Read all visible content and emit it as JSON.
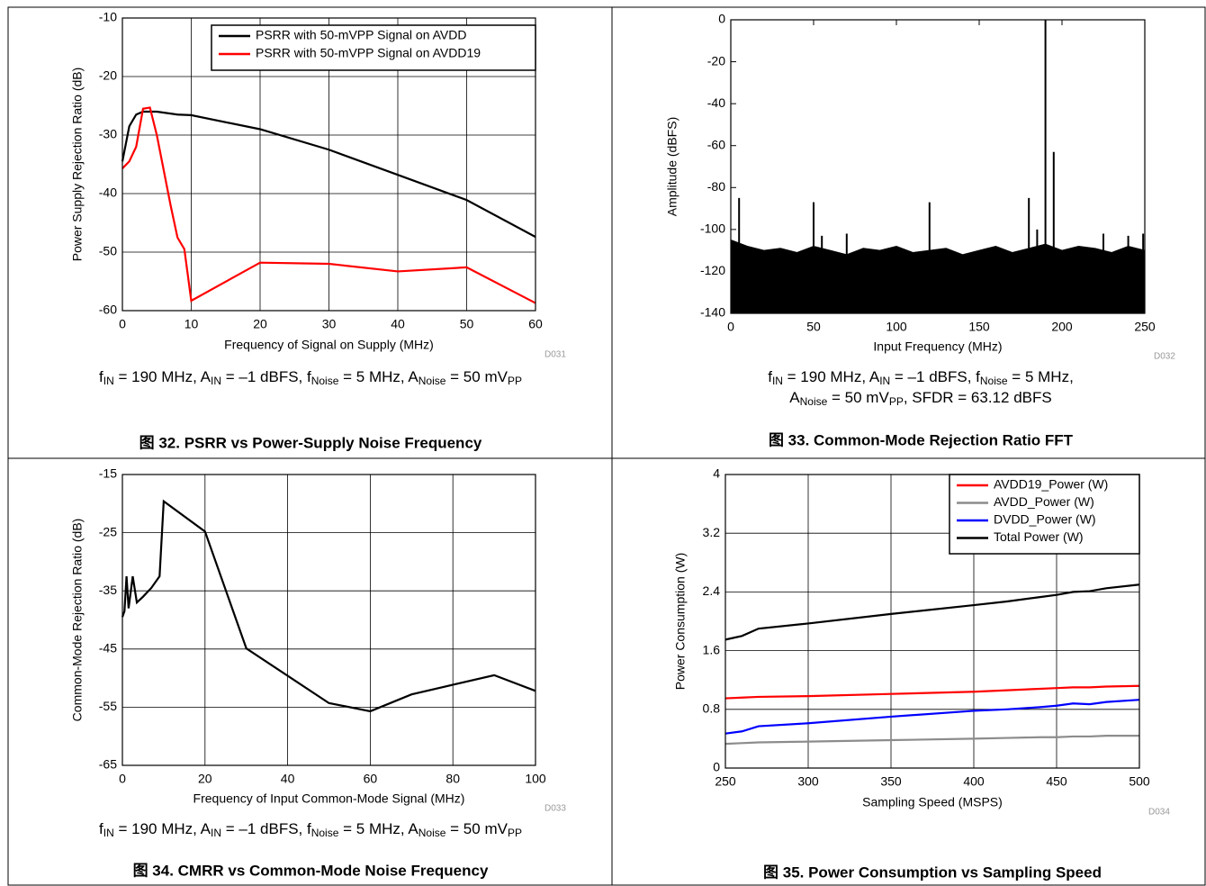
{
  "chart_data": [
    {
      "type": "line",
      "caption": "图 32. PSRR vs Power-Supply Noise Frequency",
      "xlabel": "Frequency of Signal on Supply (MHz)",
      "ylabel": "Power Supply Rejection Ratio (dB)",
      "note": "D031",
      "condition": [
        [
          "f",
          "IN",
          " = 190 MHz, A",
          "IN",
          " = –1 dBFS, f",
          "Noise",
          " = 5 MHz, A",
          "Noise",
          " = 50 mV",
          "PP"
        ]
      ],
      "xlim": [
        0,
        60
      ],
      "xticks": [
        0,
        10,
        20,
        30,
        40,
        50,
        60
      ],
      "ylim": [
        -60,
        -10
      ],
      "yticks": [
        -60,
        -50,
        -40,
        -30,
        -20,
        -10
      ],
      "grid": true,
      "legend": "upper right",
      "series": [
        {
          "name": "PSRR with 50-mVPP Signal on AVDD",
          "color": "#000000",
          "x": [
            0,
            1,
            2,
            3,
            5,
            8,
            10,
            20,
            30,
            40,
            50,
            60
          ],
          "values": [
            -34.5,
            -28.5,
            -26.5,
            -26,
            -26,
            -26.5,
            -26.6,
            -29,
            -32.5,
            -36.8,
            -41.1,
            -47.4
          ]
        },
        {
          "name": "PSRR with 50-mVPP Signal on AVDD19",
          "color": "#ff0000",
          "x": [
            0,
            1,
            2,
            3,
            4,
            5,
            6,
            7,
            8,
            9,
            10,
            20,
            30,
            40,
            50,
            60
          ],
          "values": [
            -35.7,
            -34.5,
            -32,
            -25.5,
            -25.3,
            -30,
            -36,
            -42,
            -47.5,
            -49.5,
            -58.3,
            -51.8,
            -52,
            -53.3,
            -52.6,
            -58.7
          ]
        }
      ]
    },
    {
      "type": "spectrum",
      "caption": "图 33. Common-Mode Rejection Ratio FFT",
      "xlabel": "Input Frequency (MHz)",
      "ylabel": "Amplitude (dBFS)",
      "note": "D032",
      "condition": [
        [
          "f",
          "IN",
          " = 190 MHz, A",
          "IN",
          " = –1 dBFS, f",
          "Noise",
          " = 5 MHz,"
        ],
        [
          "A",
          "Noise",
          " = 50 mV",
          "PP",
          ", SFDR = 63.12 dBFS"
        ]
      ],
      "xlim": [
        0,
        250
      ],
      "xticks": [
        0,
        50,
        100,
        150,
        200,
        250
      ],
      "ylim": [
        -140,
        0
      ],
      "yticks": [
        -140,
        -120,
        -100,
        -80,
        -60,
        -40,
        -20,
        0
      ],
      "grid": false,
      "color": "#000000",
      "noise_x": [
        0,
        10,
        20,
        30,
        40,
        50,
        60,
        70,
        80,
        90,
        100,
        110,
        120,
        130,
        140,
        150,
        160,
        170,
        180,
        190,
        200,
        210,
        220,
        230,
        240,
        250
      ],
      "noise_values": [
        -105,
        -108,
        -110,
        -109,
        -111,
        -108,
        -110,
        -112,
        -109,
        -110,
        -108,
        -111,
        -110,
        -109,
        -112,
        -110,
        -108,
        -111,
        -109,
        -107,
        -110,
        -108,
        -109,
        -111,
        -108,
        -110
      ],
      "x": [
        5,
        50,
        55,
        70,
        120,
        180,
        185,
        190,
        195,
        225,
        240,
        249
      ],
      "values": [
        -85,
        -87,
        -103,
        -102,
        -87,
        -85,
        -100,
        0,
        -63,
        -102,
        -103,
        -102
      ]
    },
    {
      "type": "line",
      "caption": "图 34. CMRR vs Common-Mode Noise Frequency",
      "xlabel": "Frequency of Input Common-Mode Signal (MHz)",
      "ylabel": "Common-Mode Rejection Ratio (dB)",
      "note": "D033",
      "condition": [
        [
          "f",
          "IN",
          " = 190 MHz, A",
          "IN",
          " = –1 dBFS, f",
          "Noise",
          " = 5 MHz, A",
          "Noise",
          " = 50 mV",
          "PP"
        ]
      ],
      "xlim": [
        0,
        100
      ],
      "xticks": [
        0,
        20,
        40,
        60,
        80,
        100
      ],
      "ylim": [
        -65,
        -15
      ],
      "yticks": [
        -65,
        -55,
        -45,
        -35,
        -25,
        -15
      ],
      "grid": true,
      "series": [
        {
          "color": "#000000",
          "x": [
            0,
            0.5,
            1,
            1.5,
            2.5,
            3.5,
            5,
            7,
            9,
            10,
            20,
            30,
            50,
            60,
            70,
            90,
            100
          ],
          "values": [
            -39.5,
            -38.5,
            -32.5,
            -38,
            -32.5,
            -37,
            -36,
            -34.5,
            -32.5,
            -19.6,
            -24.8,
            -44.9,
            -54.3,
            -55.7,
            -52.8,
            -49.5,
            -52.2
          ]
        }
      ]
    },
    {
      "type": "line",
      "caption": "图 35. Power Consumption vs Sampling Speed",
      "xlabel": "Sampling Speed (MSPS)",
      "ylabel": "Power Consumption (W)",
      "note": "D034",
      "xlim": [
        250,
        500
      ],
      "xticks": [
        250,
        300,
        350,
        400,
        450,
        500
      ],
      "ylim": [
        0,
        4
      ],
      "yticks": [
        0,
        0.8,
        1.6,
        2.4,
        3.2,
        4
      ],
      "grid": true,
      "legend": "upper right",
      "series": [
        {
          "name": "AVDD19_Power (W)",
          "color": "#ff0000",
          "x": [
            250,
            260,
            270,
            300,
            350,
            400,
            420,
            440,
            450,
            460,
            470,
            480,
            500
          ],
          "values": [
            0.95,
            0.96,
            0.97,
            0.98,
            1.01,
            1.04,
            1.06,
            1.08,
            1.09,
            1.1,
            1.1,
            1.11,
            1.12
          ]
        },
        {
          "name": "AVDD_Power (W)",
          "color": "#8c8c8c",
          "x": [
            250,
            260,
            270,
            300,
            350,
            400,
            420,
            440,
            450,
            460,
            470,
            480,
            500
          ],
          "values": [
            0.33,
            0.34,
            0.35,
            0.36,
            0.38,
            0.4,
            0.41,
            0.42,
            0.42,
            0.43,
            0.43,
            0.44,
            0.44
          ]
        },
        {
          "name": "DVDD_Power (W)",
          "color": "#0000ff",
          "x": [
            250,
            260,
            270,
            300,
            350,
            400,
            420,
            440,
            450,
            460,
            470,
            480,
            500
          ],
          "values": [
            0.47,
            0.5,
            0.57,
            0.61,
            0.7,
            0.78,
            0.8,
            0.83,
            0.85,
            0.88,
            0.87,
            0.9,
            0.93
          ]
        },
        {
          "name": "Total Power (W)",
          "color": "#000000",
          "x": [
            250,
            260,
            270,
            300,
            350,
            400,
            420,
            440,
            450,
            460,
            470,
            480,
            500
          ],
          "values": [
            1.75,
            1.8,
            1.9,
            1.97,
            2.1,
            2.22,
            2.27,
            2.33,
            2.36,
            2.4,
            2.41,
            2.45,
            2.5
          ]
        }
      ]
    }
  ]
}
